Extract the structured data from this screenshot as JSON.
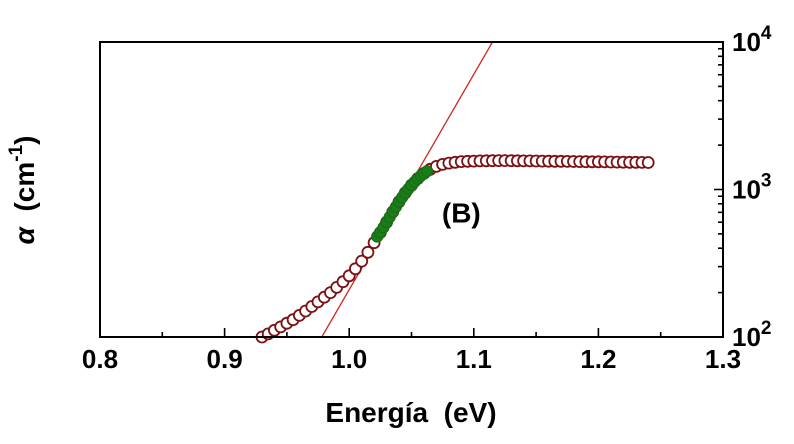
{
  "figure": {
    "background": "#ffffff"
  },
  "chart_data": {
    "type": "scatter",
    "title": "",
    "xlabel": "Energía  (eV)",
    "ylabel": "α  (cm⁻¹)",
    "ylabel_parts": {
      "symbol": "α",
      "unit_open": "  (cm",
      "superscript": "-1",
      "unit_close": ")"
    },
    "xlim": [
      0.8,
      1.3
    ],
    "ylim": [
      100,
      10000
    ],
    "yscale": "log",
    "grid": false,
    "y_axis_side": "right",
    "x_ticks": [
      0.8,
      0.9,
      1.0,
      1.1,
      1.2,
      1.3
    ],
    "x_tick_labels": [
      "0.8",
      "0.9",
      "1.0",
      "1.1",
      "1.2",
      "1.3"
    ],
    "x_minor_step": 0.05,
    "y_ticks": [
      {
        "value": 100,
        "base": "10",
        "exp": "2"
      },
      {
        "value": 1000,
        "base": "10",
        "exp": "3"
      },
      {
        "value": 10000,
        "base": "10",
        "exp": "4"
      }
    ],
    "annotation": {
      "text": "(B)",
      "x": 1.09,
      "y": 700,
      "color": "#1a7d1a"
    },
    "colors": {
      "data_marker": "#7a1113",
      "marker_fill": "#ffffff",
      "highlight": "#1a7d1a",
      "fit_line": "#d02820",
      "axis": "#000000"
    },
    "series": [
      {
        "name": "absorption-data",
        "type": "scatter",
        "marker": "open-circle",
        "color": "#7a1113",
        "fill": "#ffffff",
        "x": [
          0.93,
          0.935,
          0.94,
          0.945,
          0.95,
          0.955,
          0.96,
          0.965,
          0.97,
          0.975,
          0.98,
          0.985,
          0.99,
          0.995,
          1.0,
          1.005,
          1.01,
          1.015,
          1.02,
          1.025,
          1.03,
          1.035,
          1.04,
          1.045,
          1.05,
          1.055,
          1.06,
          1.065,
          1.07,
          1.075,
          1.08,
          1.085,
          1.09,
          1.095,
          1.1,
          1.105,
          1.11,
          1.115,
          1.12,
          1.125,
          1.13,
          1.135,
          1.14,
          1.145,
          1.15,
          1.155,
          1.16,
          1.165,
          1.17,
          1.175,
          1.18,
          1.185,
          1.19,
          1.195,
          1.2,
          1.205,
          1.21,
          1.215,
          1.22,
          1.225,
          1.23,
          1.235,
          1.24
        ],
        "y": [
          100,
          105,
          111,
          117,
          124,
          131,
          140,
          150,
          161,
          173,
          186,
          200,
          217,
          237,
          260,
          290,
          327,
          375,
          436,
          510,
          600,
          705,
          825,
          950,
          1070,
          1185,
          1285,
          1370,
          1435,
          1480,
          1510,
          1530,
          1545,
          1552,
          1558,
          1562,
          1565,
          1568,
          1570,
          1570,
          1568,
          1566,
          1564,
          1562,
          1560,
          1558,
          1556,
          1554,
          1552,
          1550,
          1548,
          1546,
          1544,
          1542,
          1540,
          1538,
          1536,
          1534,
          1532,
          1530,
          1528,
          1526,
          1524
        ]
      },
      {
        "name": "region-B-highlight",
        "type": "scatter",
        "marker": "filled-circle",
        "color": "#156e15",
        "fill": "#1a7d1a",
        "x": [
          1.0225,
          1.025,
          1.0275,
          1.03,
          1.0325,
          1.035,
          1.0375,
          1.04,
          1.0425,
          1.045,
          1.0475,
          1.05,
          1.0525,
          1.055,
          1.0575,
          1.06,
          1.0625
        ],
        "y": [
          480,
          510,
          553,
          600,
          650,
          705,
          763,
          825,
          886,
          950,
          1010,
          1070,
          1128,
          1185,
          1236,
          1285,
          1330
        ]
      },
      {
        "name": "exponential-fit-line",
        "type": "line",
        "color": "#d02820",
        "width": 1.3,
        "x": [
          0.978,
          1.115
        ],
        "y": [
          100,
          10000
        ]
      }
    ]
  }
}
